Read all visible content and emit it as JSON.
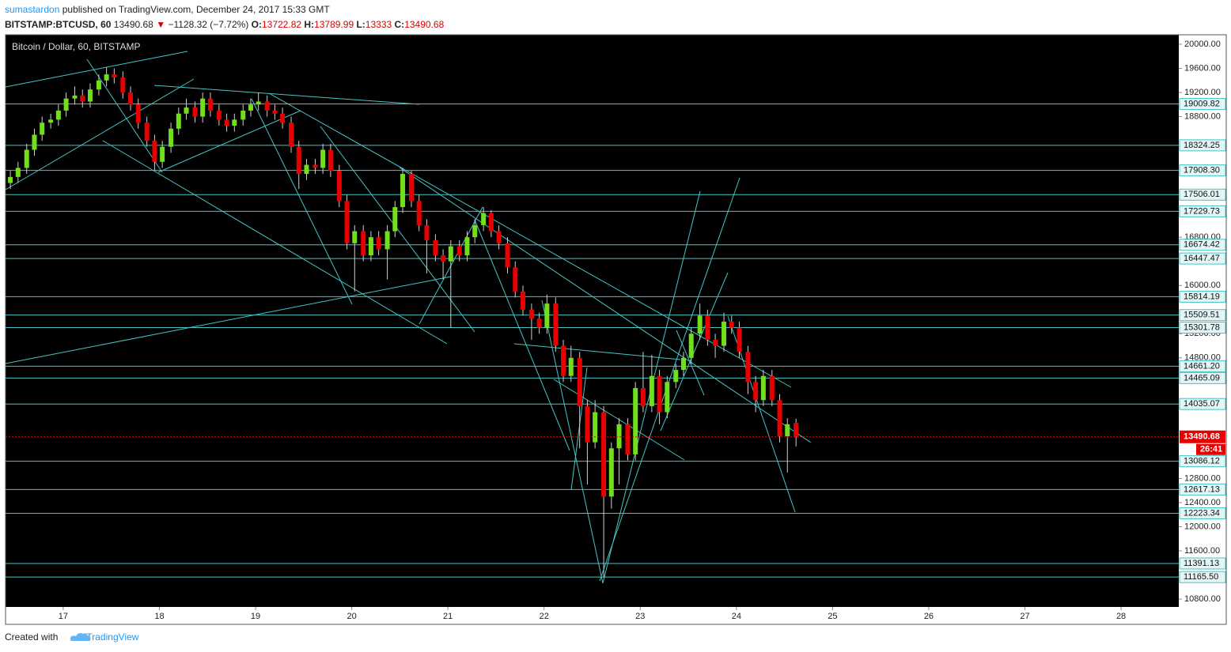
{
  "header": {
    "author": "sumastardon",
    "published": "published on TradingView.com, December 24, 2017 15:33 GMT",
    "symbol": "BITSTAMP:BTCUSD, 60",
    "change": "−1128.32 (−7.72%)",
    "open_label": "O:",
    "high_label": "H:",
    "low_label": "L:",
    "close_label": "C:"
  },
  "footer": {
    "created": "Created with",
    "brand": "TradingView"
  },
  "chart_data": {
    "type": "candlestick",
    "title": "Bitcoin / Dollar, 60, BITSTAMP",
    "x": [
      16.45,
      16.53,
      16.62,
      16.7,
      16.78,
      16.87,
      16.95,
      17.03,
      17.12,
      17.2,
      17.28,
      17.37,
      17.45,
      17.53,
      17.62,
      17.7,
      17.78,
      17.87,
      17.95,
      18.03,
      18.12,
      18.2,
      18.28,
      18.37,
      18.45,
      18.53,
      18.62,
      18.7,
      18.78,
      18.87,
      18.95,
      19.03,
      19.12,
      19.2,
      19.28,
      19.37,
      19.45,
      19.53,
      19.62,
      19.7,
      19.78,
      19.87,
      19.95,
      20.03,
      20.12,
      20.2,
      20.28,
      20.37,
      20.45,
      20.53,
      20.62,
      20.7,
      20.78,
      20.87,
      20.95,
      21.03,
      21.12,
      21.2,
      21.28,
      21.37,
      21.45,
      21.53,
      21.62,
      21.7,
      21.78,
      21.87,
      21.95,
      22.03,
      22.12,
      22.2,
      22.28,
      22.37,
      22.45,
      22.53,
      22.62,
      22.7,
      22.78,
      22.87,
      22.95,
      23.03,
      23.12,
      23.2,
      23.28,
      23.37,
      23.45,
      23.53,
      23.62,
      23.7,
      23.78,
      23.87,
      23.95,
      24.03,
      24.12,
      24.2,
      24.28,
      24.37,
      24.45,
      24.53,
      24.62
    ],
    "open": [
      17700,
      17800,
      17950,
      18250,
      18500,
      18700,
      18750,
      18900,
      19100,
      19150,
      19050,
      19250,
      19400,
      19500,
      19450,
      19200,
      19000,
      18700,
      18400,
      18050,
      18300,
      18600,
      18850,
      18950,
      18800,
      19100,
      18900,
      18750,
      18650,
      18750,
      18900,
      19000,
      19050,
      18900,
      18850,
      18700,
      18300,
      17850,
      18000,
      17950,
      18250,
      17900,
      17400,
      16700,
      16900,
      16500,
      16800,
      16600,
      16900,
      17300,
      17850,
      17400,
      17000,
      16750,
      16500,
      16400,
      16650,
      16500,
      16800,
      17000,
      17200,
      16900,
      16700,
      16300,
      15900,
      15600,
      15450,
      15300,
      15700,
      15000,
      14500,
      14800,
      14000,
      13400,
      13900,
      12500,
      13300,
      13700,
      13200,
      14300,
      14000,
      14500,
      13900,
      14400,
      14600,
      14800,
      15200,
      15500,
      15100,
      15000,
      15400,
      15300,
      14900,
      14400,
      14100,
      14500,
      14100,
      13500,
      13722.82
    ],
    "high": [
      17900,
      18050,
      18350,
      18600,
      18800,
      18850,
      19000,
      19200,
      19300,
      19250,
      19350,
      19500,
      19620,
      19600,
      19550,
      19300,
      19100,
      18800,
      18500,
      18400,
      18700,
      18950,
      19100,
      19050,
      19200,
      19200,
      19000,
      18850,
      18850,
      19000,
      19100,
      19200,
      19150,
      19000,
      18950,
      18800,
      18400,
      18100,
      18100,
      18350,
      18350,
      18000,
      17500,
      17000,
      17000,
      16900,
      16900,
      17000,
      17400,
      17950,
      17900,
      17500,
      17100,
      16850,
      16600,
      16750,
      16750,
      16900,
      17100,
      17300,
      17250,
      17000,
      16800,
      16400,
      16000,
      15700,
      15550,
      15850,
      15800,
      15100,
      15000,
      14900,
      14100,
      14100,
      14000,
      13400,
      13800,
      13800,
      14400,
      14900,
      14850,
      14600,
      14500,
      14700,
      14900,
      15300,
      15700,
      15600,
      15200,
      15550,
      15500,
      15400,
      15000,
      14500,
      14600,
      14600,
      14200,
      13800,
      13789.99
    ],
    "low": [
      17600,
      17700,
      17850,
      18150,
      18400,
      18600,
      18650,
      18800,
      19000,
      18950,
      18950,
      19150,
      19300,
      19350,
      19100,
      18900,
      18600,
      18300,
      17900,
      17950,
      18200,
      18500,
      18750,
      18700,
      18700,
      18800,
      18650,
      18550,
      18550,
      18650,
      18800,
      18900,
      18800,
      18750,
      18600,
      18200,
      17600,
      17750,
      17850,
      17850,
      17800,
      17300,
      16600,
      15900,
      16400,
      16400,
      16500,
      16100,
      16800,
      17200,
      17300,
      16900,
      16200,
      16400,
      16100,
      15300,
      16400,
      16400,
      16700,
      16900,
      16800,
      16600,
      16200,
      15800,
      15500,
      15100,
      15200,
      15200,
      14900,
      14400,
      14400,
      13300,
      12700,
      13300,
      11165,
      12300,
      12700,
      13100,
      13100,
      13900,
      13900,
      13700,
      13800,
      14300,
      14500,
      14700,
      15100,
      15000,
      14800,
      14900,
      15200,
      14800,
      14200,
      13900,
      14000,
      14000,
      13400,
      12900,
      13333
    ],
    "close": [
      17800,
      17950,
      18250,
      18500,
      18700,
      18750,
      18900,
      19100,
      19150,
      19050,
      19250,
      19400,
      19500,
      19450,
      19200,
      19000,
      18700,
      18400,
      18050,
      18300,
      18600,
      18850,
      18950,
      18800,
      19100,
      18900,
      18750,
      18650,
      18750,
      18900,
      19000,
      19050,
      18900,
      18850,
      18700,
      18300,
      17850,
      18000,
      17950,
      18250,
      17900,
      17400,
      16700,
      16900,
      16500,
      16800,
      16600,
      16900,
      17300,
      17850,
      17400,
      17000,
      16750,
      16500,
      16400,
      16650,
      16500,
      16800,
      17000,
      17200,
      16900,
      16700,
      16300,
      15900,
      15600,
      15450,
      15300,
      15700,
      15000,
      14500,
      14800,
      14000,
      13400,
      13900,
      12500,
      13300,
      13700,
      13200,
      14300,
      14000,
      14500,
      13900,
      14400,
      14600,
      14800,
      15200,
      15500,
      15100,
      15000,
      15400,
      15300,
      14900,
      14400,
      14100,
      14500,
      14100,
      13500,
      13700,
      13490.68
    ],
    "up_color": "#6fe01a",
    "down_color": "#e80000",
    "level_color": "#46c4c4",
    "xlim": [
      16.4,
      28.6
    ],
    "ylim": [
      10670,
      20157
    ],
    "xticks": [
      17,
      18,
      19,
      20,
      21,
      22,
      23,
      24,
      25,
      26,
      27,
      28
    ],
    "yticks": [
      {
        "value": 20000,
        "label": "20000.00"
      },
      {
        "value": 19600,
        "label": "19600.00"
      },
      {
        "value": 19200,
        "label": "19200.00"
      },
      {
        "value": 18800,
        "label": "18800.00"
      },
      {
        "value": 16800,
        "label": "16800.00"
      },
      {
        "value": 16000,
        "label": "16000.00"
      },
      {
        "value": 15200,
        "label": "15200.00"
      },
      {
        "value": 14800,
        "label": "14800.00"
      },
      {
        "value": 12800,
        "label": "12800.00"
      },
      {
        "value": 12400,
        "label": "12400.00"
      },
      {
        "value": 12000,
        "label": "12000.00"
      },
      {
        "value": 11600,
        "label": "11600.00"
      },
      {
        "value": 10800,
        "label": "10800.00"
      }
    ],
    "levels": [
      19009.82,
      18324.25,
      {
        "value": 17908.3,
        "label": "17908.30"
      },
      17506.01,
      17229.73,
      16674.42,
      16447.47,
      15814.19,
      15509.51,
      15301.78,
      {
        "value": 14661.2,
        "label": "14661.20"
      },
      14465.09,
      14035.07,
      13086.12,
      12617.13,
      12223.34,
      11391.13,
      {
        "value": 11165.5,
        "label": "11165.50"
      }
    ],
    "countdown": "26:41"
  }
}
